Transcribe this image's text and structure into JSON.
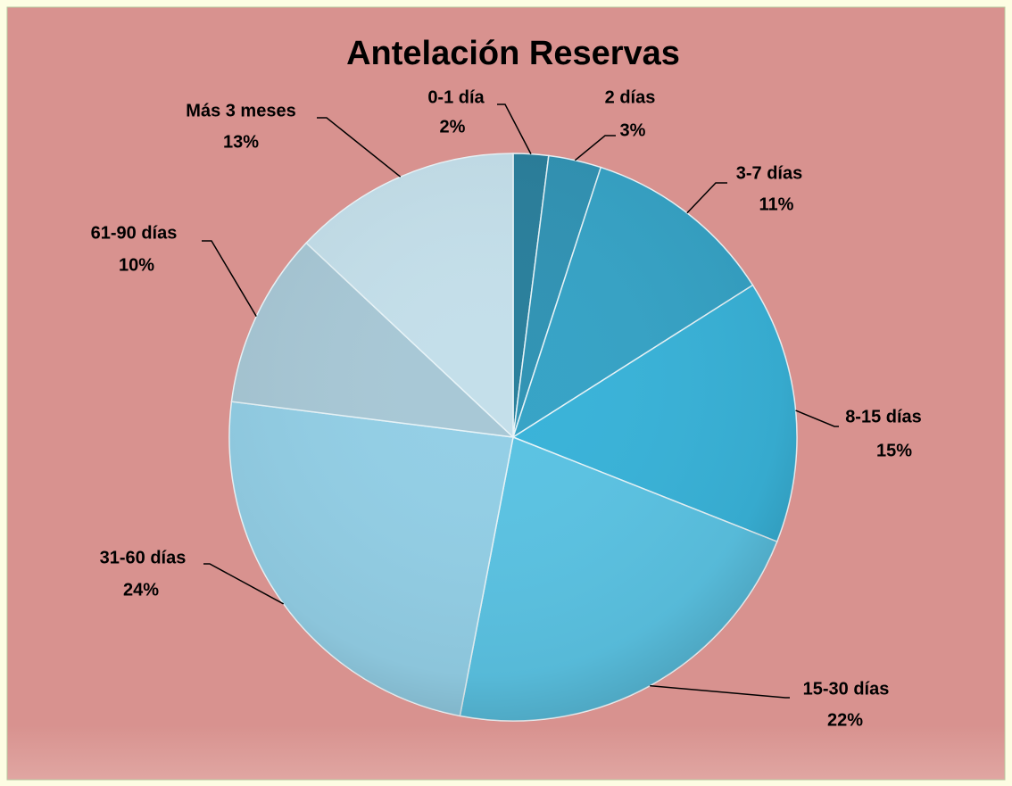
{
  "chart_data": {
    "type": "pie",
    "title": "Antelación Reservas",
    "categories": [
      "0-1 día",
      "2 días",
      "3-7 días",
      "8-15 días",
      "15-30 días",
      "31-60 días",
      "61-90 días",
      "Más 3 meses"
    ],
    "values": [
      2,
      3,
      11,
      15,
      22,
      24,
      10,
      13
    ],
    "value_labels": [
      "2%",
      "3%",
      "11%",
      "15%",
      "22%",
      "24%",
      "10%",
      "13%"
    ],
    "colors": [
      "#2a7f9c",
      "#3193b4",
      "#36a3c6",
      "#39b3d9",
      "#5bc3e3",
      "#93cfe6",
      "#a8c8d6",
      "#c4dfea"
    ]
  }
}
